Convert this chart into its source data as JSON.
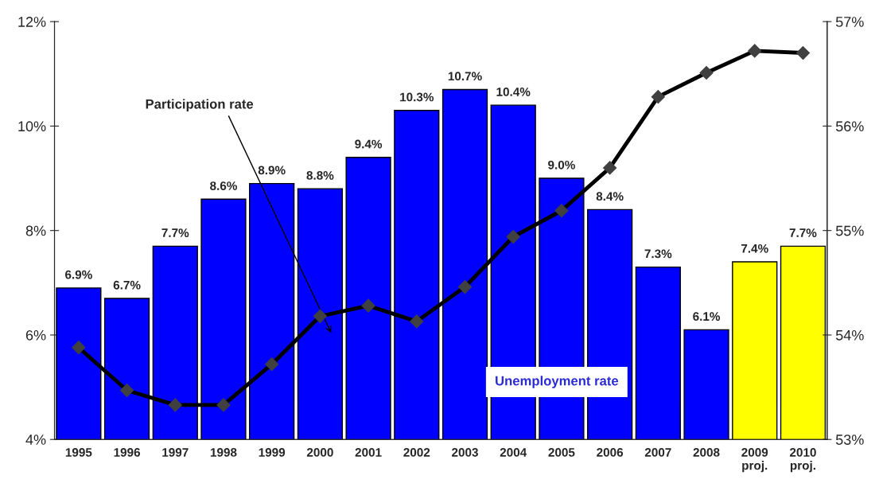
{
  "chart_data": {
    "type": "bar",
    "categories": [
      "1995",
      "1996",
      "1997",
      "1998",
      "1999",
      "2000",
      "2001",
      "2002",
      "2003",
      "2004",
      "2005",
      "2006",
      "2007",
      "2008",
      "2009\nproj.",
      "2010\nproj."
    ],
    "series": [
      {
        "name": "Unemployment rate",
        "colors": [
          "#0000ff",
          "#0000ff",
          "#0000ff",
          "#0000ff",
          "#0000ff",
          "#0000ff",
          "#0000ff",
          "#0000ff",
          "#0000ff",
          "#0000ff",
          "#0000ff",
          "#0000ff",
          "#0000ff",
          "#0000ff",
          "#ffff00",
          "#ffff00"
        ],
        "values": [
          6.9,
          6.7,
          7.7,
          8.6,
          8.9,
          8.8,
          9.4,
          10.3,
          10.7,
          10.4,
          9.0,
          8.4,
          7.3,
          6.1,
          7.4,
          7.7
        ],
        "value_labels": [
          "6.9%",
          "6.7%",
          "7.7%",
          "8.6%",
          "8.9%",
          "8.8%",
          "9.4%",
          "10.3%",
          "10.7%",
          "10.4%",
          "9.0%",
          "8.4%",
          "7.3%",
          "6.1%",
          "7.4%",
          "7.7%"
        ]
      },
      {
        "name": "Participation rate",
        "type": "line",
        "axis": "y2",
        "color": "#000000",
        "marker": "diamond",
        "values": [
          53.88,
          53.47,
          53.33,
          53.33,
          53.72,
          54.18,
          54.28,
          54.13,
          54.46,
          54.94,
          55.19,
          55.6,
          56.28,
          56.51,
          56.72,
          56.7
        ]
      }
    ],
    "ylim": [
      4,
      12
    ],
    "yticks": [
      {
        "value": 4,
        "label": "4%"
      },
      {
        "value": 6,
        "label": "6%"
      },
      {
        "value": 8,
        "label": "8%"
      },
      {
        "value": 10,
        "label": "10%"
      },
      {
        "value": 12,
        "label": "12%"
      }
    ],
    "y2lim": [
      53,
      57
    ],
    "y2ticks": [
      {
        "value": 53,
        "label": "53%"
      },
      {
        "value": 54,
        "label": "54%"
      },
      {
        "value": 55,
        "label": "55%"
      },
      {
        "value": 56,
        "label": "56%"
      },
      {
        "value": 57,
        "label": "57%"
      }
    ],
    "grid": false,
    "legend": false
  }
}
